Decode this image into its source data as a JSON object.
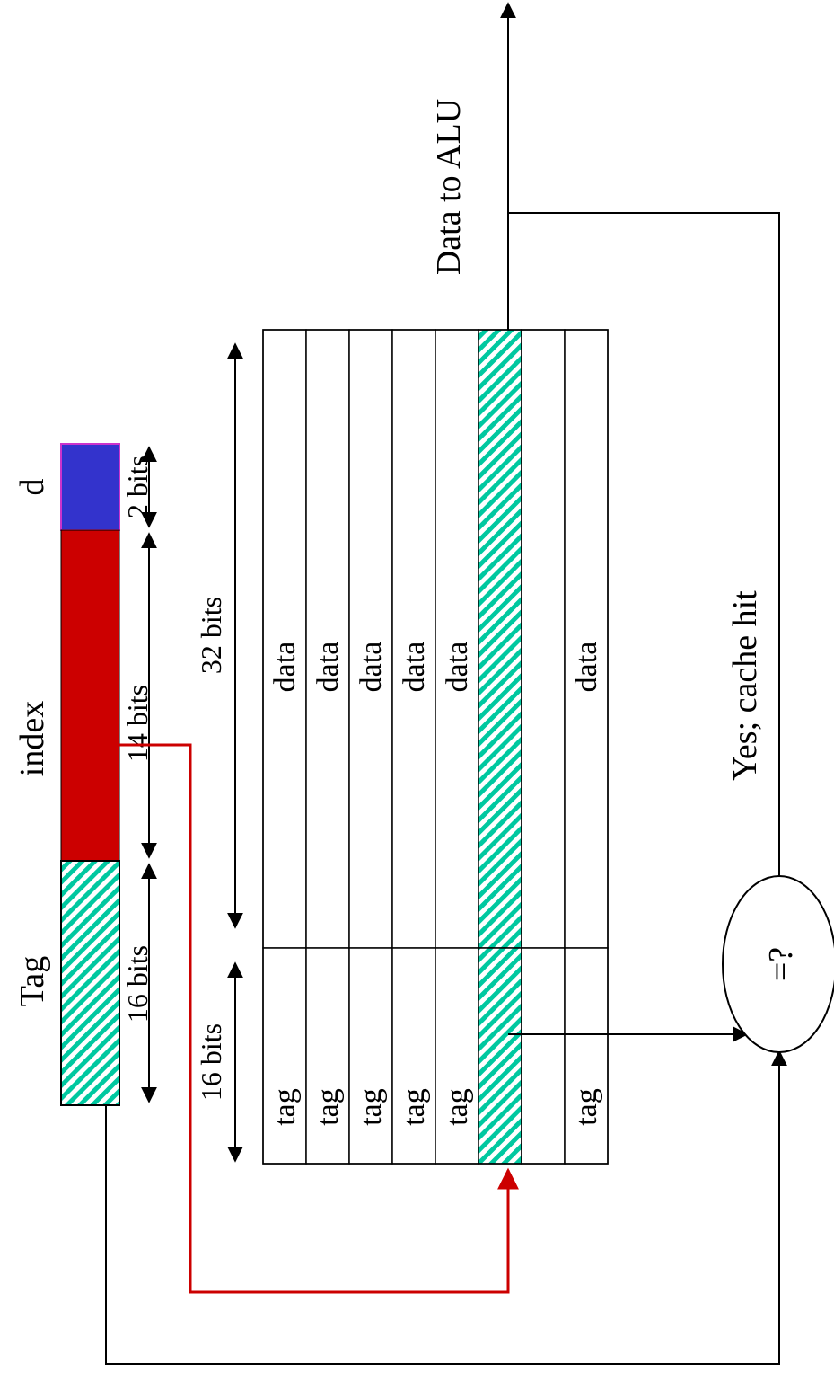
{
  "address": {
    "field_labels": {
      "tag": "Tag",
      "index": "index",
      "offset": "d"
    },
    "field_sizes": {
      "tag": "16 bits",
      "index": "14 bits",
      "offset": "2 bits"
    }
  },
  "cache": {
    "tag_width_label": "16 bits",
    "data_width_label": "32 bits",
    "rows": [
      {
        "tag": "tag",
        "data": "data"
      },
      {
        "tag": "tag",
        "data": "data"
      },
      {
        "tag": "tag",
        "data": "data"
      },
      {
        "tag": "tag",
        "data": "data"
      },
      {
        "tag": "tag",
        "data": "data"
      },
      {
        "tag": "",
        "data": "",
        "selected": true
      },
      {
        "tag": "",
        "data": ""
      },
      {
        "tag": "tag",
        "data": "data"
      }
    ]
  },
  "comparator": {
    "label": "=?"
  },
  "outputs": {
    "data_out": "Data to ALU",
    "hit": "Yes; cache hit"
  },
  "colors": {
    "tag_field": "#00c8a0",
    "index_field": "#cc0000",
    "offset_field": "#3333cc",
    "offset_border": "#cc33cc",
    "index_path": "#cc0000",
    "lines": "#000000"
  }
}
